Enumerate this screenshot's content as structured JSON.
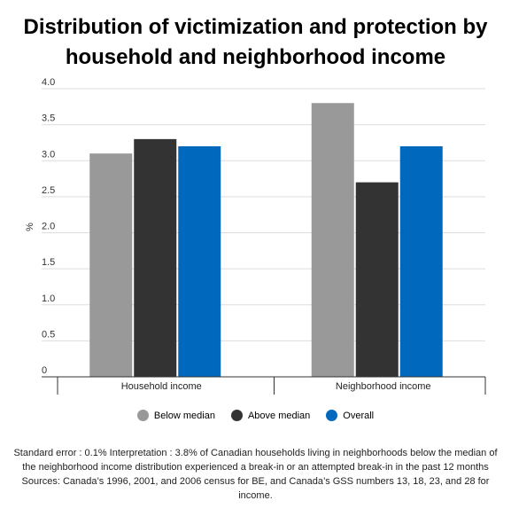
{
  "title": "Distribution of victimization and protection by household and neighborhood income",
  "notes": {
    "line1": "Standard error : 0.1% Interpretation : 3.8% of Canadian households living in neighborhoods below the median of the neighborhood income distribution experienced a break-in or an attempted break-in in the past 12 months",
    "line2": "Sources: Canada’s 1996, 2001, and 2006 census for BE, and Canada’s GSS numbers 13, 18, 23, and 28 for income."
  },
  "chart_data": {
    "type": "bar",
    "title": "Distribution of victimization and protection by household and neighborhood income",
    "xlabel": "",
    "ylabel": "%",
    "ylim": [
      0,
      4.0
    ],
    "yticks": [
      "0",
      "0.5",
      "1.0",
      "1.5",
      "2.0",
      "2.5",
      "3.0",
      "3.5",
      "4.0"
    ],
    "categories": [
      "Household income",
      "Neighborhood income"
    ],
    "series": [
      {
        "name": "Below median",
        "color": "#999999",
        "values": [
          3.1,
          3.8
        ]
      },
      {
        "name": "Above median",
        "color": "#333333",
        "values": [
          3.3,
          2.7
        ]
      },
      {
        "name": "Overall",
        "color": "#0068bd",
        "values": [
          3.2,
          3.2
        ]
      }
    ],
    "grid": true,
    "legend_position": "bottom"
  }
}
